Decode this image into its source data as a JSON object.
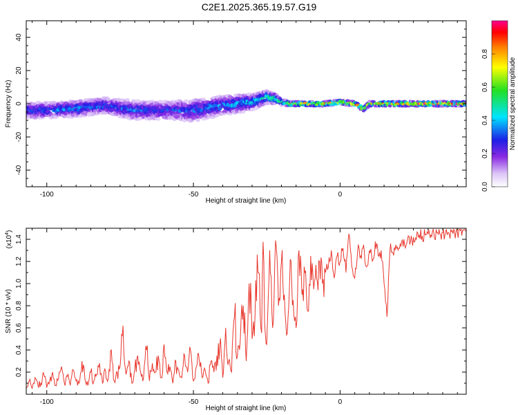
{
  "title": "C2E1.2025.365.19.57.G19",
  "colors": {
    "snr_line": "#e8352b",
    "axis": "#000000",
    "background": "#ffffff"
  },
  "chart_data": [
    {
      "type": "heatmap",
      "xlabel": "Height of straight line (km)",
      "ylabel": "Frequency (Hz)",
      "xlim": [
        -107,
        43
      ],
      "ylim": [
        -50,
        50
      ],
      "xticks": [
        -100,
        -50,
        0
      ],
      "yticks": [
        -40,
        -20,
        0,
        20,
        40
      ],
      "grid": false,
      "colorbar": {
        "label": "Normalized spectral amplitude",
        "range": [
          0,
          1
        ],
        "ticks": [
          0.0,
          0.2,
          0.4,
          0.6,
          0.8
        ],
        "tick_labels": [
          "0.0",
          "0.2",
          "0.4",
          "0.6",
          "0.8"
        ],
        "colormap": "rainbow (white-violet-blue-cyan-green-yellow-red-magenta)"
      },
      "ridge": {
        "x": [
          -107,
          -100,
          -90,
          -80,
          -70,
          -60,
          -50,
          -40,
          -30,
          -25,
          -22,
          -20,
          -17,
          -15,
          -10,
          -5,
          0,
          5,
          8,
          10,
          15,
          20,
          30,
          43
        ],
        "frequency": [
          -4,
          -4,
          -3,
          -1,
          -4,
          -4,
          -4,
          -1,
          1,
          4,
          3,
          1,
          0,
          0,
          0,
          0,
          1,
          0,
          -3,
          0,
          0,
          0,
          0,
          0
        ],
        "amplitude": [
          0.35,
          0.35,
          0.4,
          0.35,
          0.35,
          0.3,
          0.35,
          0.4,
          0.45,
          0.5,
          0.6,
          0.6,
          0.85,
          0.85,
          0.85,
          0.85,
          0.9,
          0.85,
          0.8,
          0.85,
          0.9,
          0.9,
          0.95,
          0.95
        ],
        "spread_hz": [
          5,
          5,
          5,
          5,
          6,
          6,
          7,
          6,
          5,
          4,
          3,
          2,
          1.5,
          1.5,
          1.5,
          1.5,
          1.5,
          1.5,
          1.5,
          1.5,
          1.5,
          1.5,
          1.5,
          1.5
        ]
      }
    },
    {
      "type": "line",
      "xlabel": "Height of straight line (km)",
      "ylabel": "SNR (10 * v/v)",
      "y_multiplier": "(x10^4)",
      "xlim": [
        -107,
        43
      ],
      "ylim": [
        0,
        1.5
      ],
      "xticks": [
        -100,
        -50,
        0
      ],
      "yticks": [
        0.2,
        0.4,
        0.6,
        0.8,
        1.0,
        1.2,
        1.4
      ],
      "grid": false,
      "series": [
        {
          "x_start": -107,
          "x_step": 1,
          "values": [
            0.06,
            0.12,
            0.05,
            0.15,
            0.08,
            0.1,
            0.18,
            0.06,
            0.12,
            0.2,
            0.08,
            0.14,
            0.25,
            0.1,
            0.16,
            0.08,
            0.22,
            0.12,
            0.1,
            0.3,
            0.14,
            0.08,
            0.2,
            0.12,
            0.18,
            0.28,
            0.1,
            0.22,
            0.15,
            0.4,
            0.12,
            0.2,
            0.25,
            0.62,
            0.18,
            0.3,
            0.1,
            0.22,
            0.35,
            0.2,
            0.15,
            0.4,
            0.12,
            0.28,
            0.2,
            0.35,
            0.15,
            0.45,
            0.2,
            0.25,
            0.1,
            0.3,
            0.22,
            0.15,
            0.35,
            0.2,
            0.4,
            0.12,
            0.25,
            0.3,
            0.15,
            0.22,
            0.1,
            0.3,
            0.2,
            0.35,
            0.45,
            0.15,
            0.6,
            0.3,
            0.2,
            0.7,
            0.35,
            0.5,
            0.8,
            0.3,
            1.0,
            0.5,
            0.7,
            1.1,
            0.6,
            1.2,
            0.45,
            1.3,
            0.6,
            1.39,
            0.8,
            1.2,
            0.9,
            0.55,
            1.22,
            0.85,
            0.6,
            1.3,
            0.9,
            1.1,
            0.75,
            1.25,
            0.95,
            1.05,
            1.2,
            1.0,
            1.1,
            1.15,
            1.3,
            1.05,
            1.25,
            1.2,
            1.32,
            1.1,
            1.45,
            1.15,
            1.05,
            1.3,
            1.25,
            1.35,
            1.15,
            1.3,
            1.2,
            1.38,
            1.25,
            1.3,
            1.0,
            0.7,
            1.3,
            1.28,
            1.35,
            1.32,
            1.38,
            1.35,
            1.4,
            1.38,
            1.42,
            1.4,
            1.44,
            1.43,
            1.44,
            1.45,
            1.44,
            1.45,
            1.46,
            1.45,
            1.46,
            1.47,
            1.46,
            1.47,
            1.48,
            1.47,
            1.48,
            1.48,
            1.47
          ]
        }
      ]
    }
  ]
}
